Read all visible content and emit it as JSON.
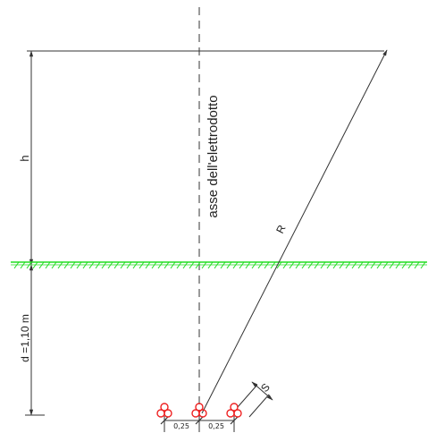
{
  "labels": {
    "height": "h",
    "depth": "d =1,10 m",
    "axis": "asse dell'elettrodotto",
    "radius": "R",
    "spacing_s": "S",
    "spacing_left": "0,25",
    "spacing_right": "0,25"
  },
  "colors": {
    "line": "#333333",
    "ground": "#22dd22",
    "cable": "#ee2222"
  }
}
